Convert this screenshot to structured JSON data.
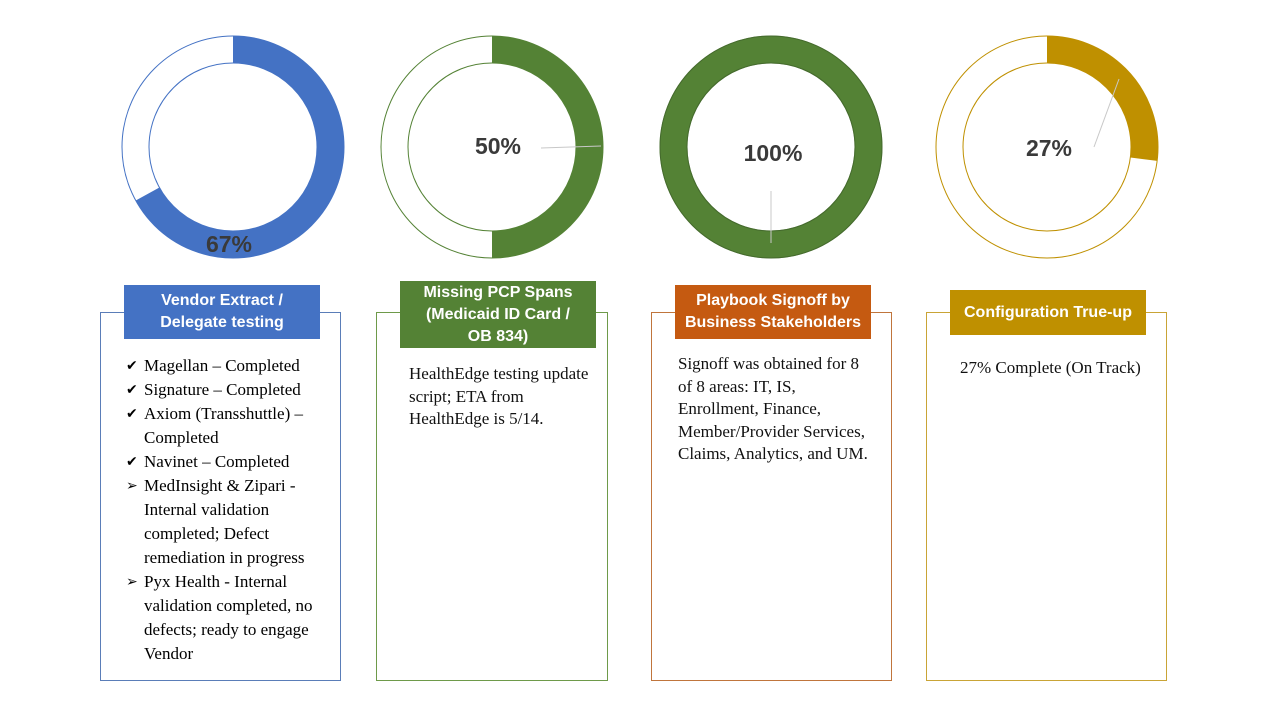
{
  "chart_data": [
    {
      "type": "donut",
      "value": 67,
      "label": "67%",
      "color": "#4472C4"
    },
    {
      "type": "donut",
      "value": 50,
      "label": "50%",
      "color": "#548235"
    },
    {
      "type": "donut",
      "value": 100,
      "label": "100%",
      "color": "#548235"
    },
    {
      "type": "donut",
      "value": 27,
      "label": "27%",
      "color": "#BF9000"
    }
  ],
  "cards": [
    {
      "title_lines": [
        "Vendor Extract /",
        "Delegate testing"
      ],
      "header_color": "#4472C4",
      "border_color": "#5A7DB8",
      "items": [
        {
          "marker": "check",
          "text": "Magellan – Completed"
        },
        {
          "marker": "check",
          "text": "Signature – Completed"
        },
        {
          "marker": "check",
          "text": " Axiom (Transshuttle) – Completed"
        },
        {
          "marker": "check",
          "text": "Navinet – Completed"
        },
        {
          "marker": "arrow",
          "text": " MedInsight & Zipari - Internal validation completed; Defect remediation in progress"
        },
        {
          "marker": "arrow",
          "text": "Pyx Health - Internal validation completed, no defects; ready to engage Vendor"
        }
      ]
    },
    {
      "title_lines": [
        "Missing PCP Spans",
        "(Medicaid ID Card /",
        "OB 834)"
      ],
      "header_color": "#548235",
      "border_color": "#6E9A4A",
      "body": "HealthEdge testing update script; ETA from HealthEdge is 5/14."
    },
    {
      "title_lines": [
        "Playbook Signoff by",
        "Business Stakeholders"
      ],
      "header_color": "#C55A11",
      "border_color": "#C0753C",
      "body": "Signoff was obtained for 8 of 8 areas: IT, IS, Enrollment, Finance, Member/Provider Services, Claims, Analytics, and UM."
    },
    {
      "title_lines": [
        "Configuration True-up"
      ],
      "header_color": "#BF9000",
      "border_color": "#C9A436",
      "body": "27% Complete (On Track)"
    }
  ]
}
